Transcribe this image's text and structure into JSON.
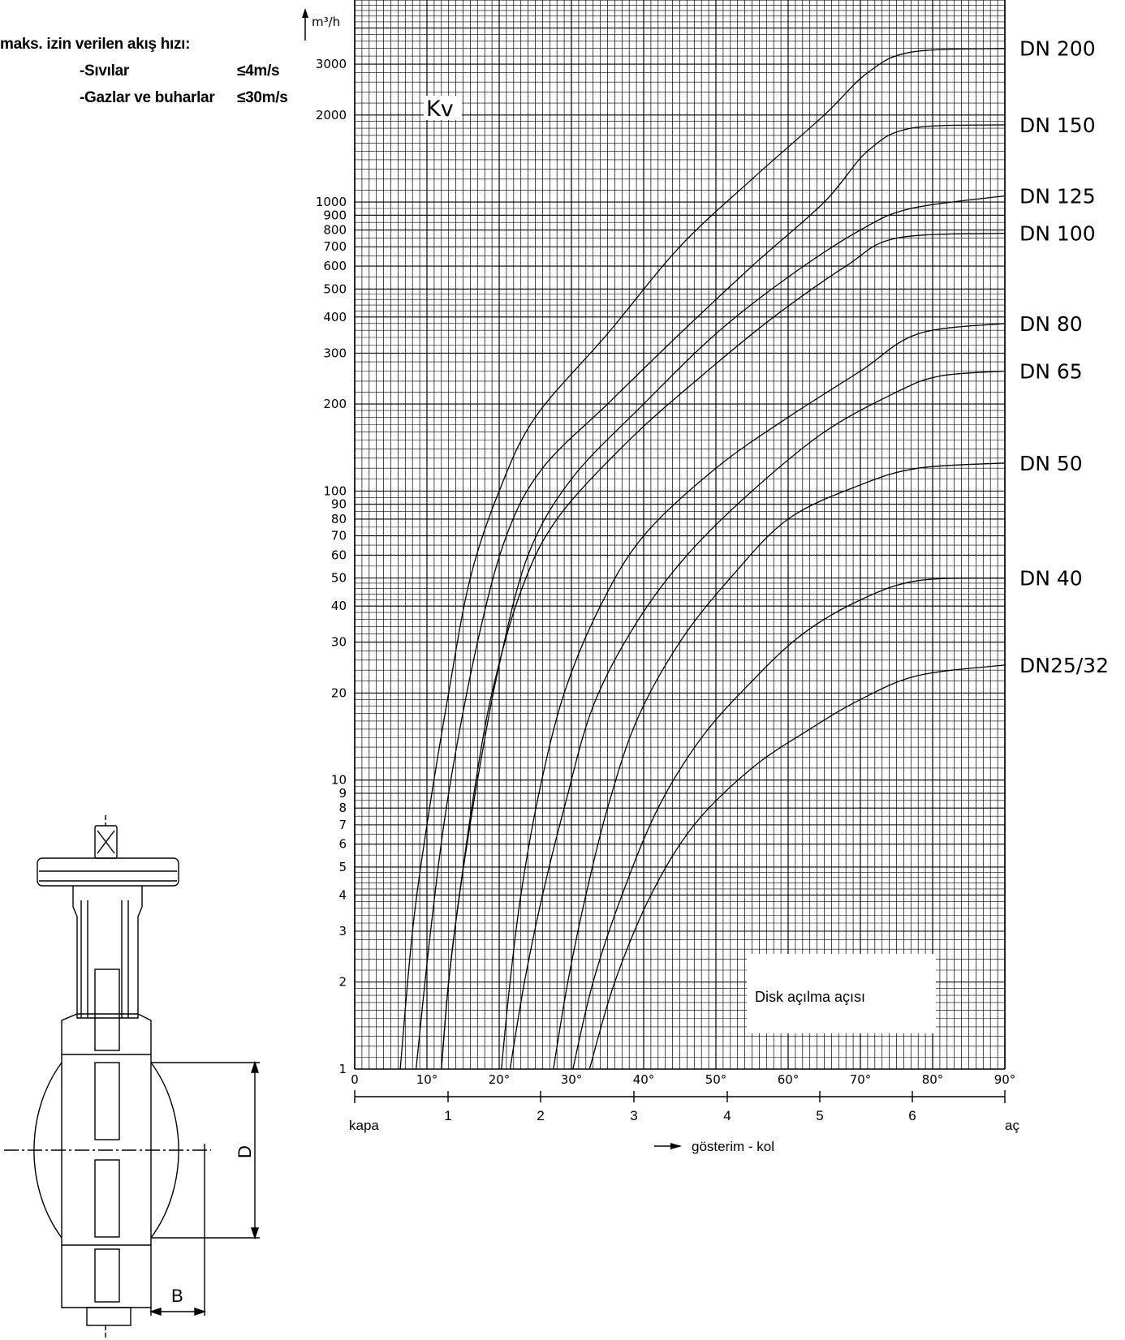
{
  "note": {
    "title": "maks. izin verilen akış hızı:",
    "rows": [
      {
        "label": "-Sıvılar",
        "value": "≤4m/s"
      },
      {
        "label": "-Gazlar ve buharlar",
        "value": "≤30m/s"
      }
    ]
  },
  "chart_data": {
    "type": "line",
    "y_scale": "log",
    "grid": true,
    "ylim": [
      1,
      5000
    ],
    "xlim": [
      0,
      90
    ],
    "ylabel": "m³/h",
    "kv_label": "Kv",
    "y_tick_labels": [
      "1",
      "2",
      "3",
      "4",
      "5",
      "6",
      "7",
      "8",
      "9",
      "10",
      "20",
      "30",
      "40",
      "50",
      "60",
      "70",
      "80",
      "90",
      "100",
      "200",
      "300",
      "400",
      "500",
      "600",
      "700",
      "800",
      "900",
      "1000",
      "2000",
      "3000"
    ],
    "x_tick_labels": [
      "0",
      "10°",
      "20°",
      "30°",
      "40°",
      "50°",
      "60°",
      "70°",
      "80°",
      "90°"
    ],
    "lever_positions": [
      "1",
      "2",
      "3",
      "4",
      "5",
      "6"
    ],
    "x_closed_label": "kapa",
    "x_open_label": "aç",
    "x_axis_caption": "gösterim - kol",
    "legend_box": "Disk açılma açısı",
    "series": [
      {
        "name": "DN 200",
        "points": [
          [
            6.3,
            1
          ],
          [
            8,
            3
          ],
          [
            10,
            7
          ],
          [
            13,
            20
          ],
          [
            16,
            50
          ],
          [
            20,
            100
          ],
          [
            25,
            180
          ],
          [
            35,
            350
          ],
          [
            45,
            700
          ],
          [
            55,
            1200
          ],
          [
            65,
            2000
          ],
          [
            71,
            2800
          ],
          [
            77,
            3300
          ],
          [
            90,
            3400
          ]
        ]
      },
      {
        "name": "DN 150",
        "points": [
          [
            8.5,
            1
          ],
          [
            10.5,
            3
          ],
          [
            13,
            9
          ],
          [
            17,
            30
          ],
          [
            21,
            70
          ],
          [
            26,
            120
          ],
          [
            35,
            200
          ],
          [
            45,
            350
          ],
          [
            55,
            600
          ],
          [
            65,
            1000
          ],
          [
            71,
            1500
          ],
          [
            77,
            1800
          ],
          [
            90,
            1850
          ]
        ]
      },
      {
        "name": "DN 125",
        "points": [
          [
            12,
            1
          ],
          [
            13,
            2
          ],
          [
            14.5,
            4
          ],
          [
            17,
            10
          ],
          [
            20,
            25
          ],
          [
            24,
            60
          ],
          [
            30,
            110
          ],
          [
            40,
            200
          ],
          [
            50,
            350
          ],
          [
            60,
            550
          ],
          [
            70,
            800
          ],
          [
            77,
            950
          ],
          [
            90,
            1050
          ]
        ]
      },
      {
        "name": "DN 100",
        "points": [
          [
            12,
            1
          ],
          [
            13,
            2
          ],
          [
            14.5,
            4
          ],
          [
            16.5,
            9
          ],
          [
            19,
            20
          ],
          [
            23,
            45
          ],
          [
            28,
            80
          ],
          [
            38,
            150
          ],
          [
            48,
            250
          ],
          [
            58,
            400
          ],
          [
            68,
            600
          ],
          [
            75,
            750
          ],
          [
            90,
            780
          ]
        ]
      },
      {
        "name": "DN 80",
        "points": [
          [
            20.3,
            1
          ],
          [
            21.5,
            2
          ],
          [
            23,
            4
          ],
          [
            25.5,
            9
          ],
          [
            29,
            20
          ],
          [
            34,
            40
          ],
          [
            40,
            70
          ],
          [
            50,
            120
          ],
          [
            60,
            180
          ],
          [
            70,
            260
          ],
          [
            78,
            350
          ],
          [
            90,
            380
          ]
        ]
      },
      {
        "name": "DN 65",
        "points": [
          [
            21.5,
            1
          ],
          [
            23.5,
            2
          ],
          [
            26,
            4
          ],
          [
            29,
            8
          ],
          [
            33,
            18
          ],
          [
            39,
            35
          ],
          [
            46,
            60
          ],
          [
            55,
            100
          ],
          [
            65,
            160
          ],
          [
            75,
            220
          ],
          [
            81,
            250
          ],
          [
            90,
            260
          ]
        ]
      },
      {
        "name": "DN 50",
        "points": [
          [
            27.5,
            1
          ],
          [
            29.5,
            2
          ],
          [
            32,
            4
          ],
          [
            35,
            8
          ],
          [
            39,
            16
          ],
          [
            45,
            30
          ],
          [
            52,
            50
          ],
          [
            60,
            80
          ],
          [
            70,
            105
          ],
          [
            78,
            120
          ],
          [
            90,
            125
          ]
        ]
      },
      {
        "name": "DN 40",
        "points": [
          [
            30.2,
            1
          ],
          [
            33,
            2
          ],
          [
            37,
            4
          ],
          [
            42,
            8
          ],
          [
            48,
            14
          ],
          [
            55,
            22
          ],
          [
            62,
            32
          ],
          [
            70,
            42
          ],
          [
            78,
            49
          ],
          [
            90,
            50
          ]
        ]
      },
      {
        "name": "DN25/32",
        "points": [
          [
            32.5,
            1
          ],
          [
            36,
            2
          ],
          [
            41,
            4
          ],
          [
            47,
            7
          ],
          [
            55,
            11
          ],
          [
            63,
            15
          ],
          [
            70,
            19
          ],
          [
            78,
            23
          ],
          [
            90,
            25
          ]
        ]
      }
    ]
  }
}
